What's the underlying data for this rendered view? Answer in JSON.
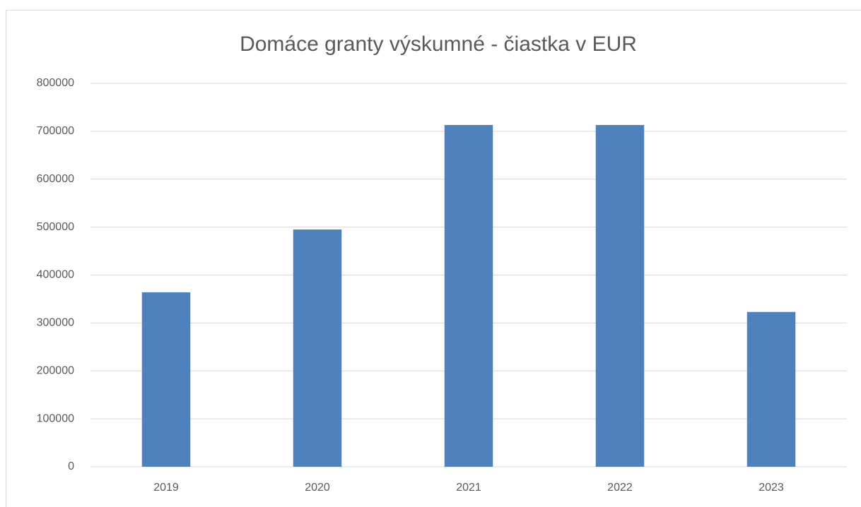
{
  "chart_data": {
    "type": "bar",
    "title": "Domáce granty výskumné - čiastka v EUR",
    "categories": [
      "2019",
      "2020",
      "2021",
      "2022",
      "2023"
    ],
    "values": [
      364000,
      495000,
      713000,
      713000,
      323000
    ],
    "color": "#4f81bd",
    "ylim": [
      0,
      800000
    ],
    "yticks": [
      0,
      100000,
      200000,
      300000,
      400000,
      500000,
      600000,
      700000,
      800000
    ],
    "grid": true
  }
}
